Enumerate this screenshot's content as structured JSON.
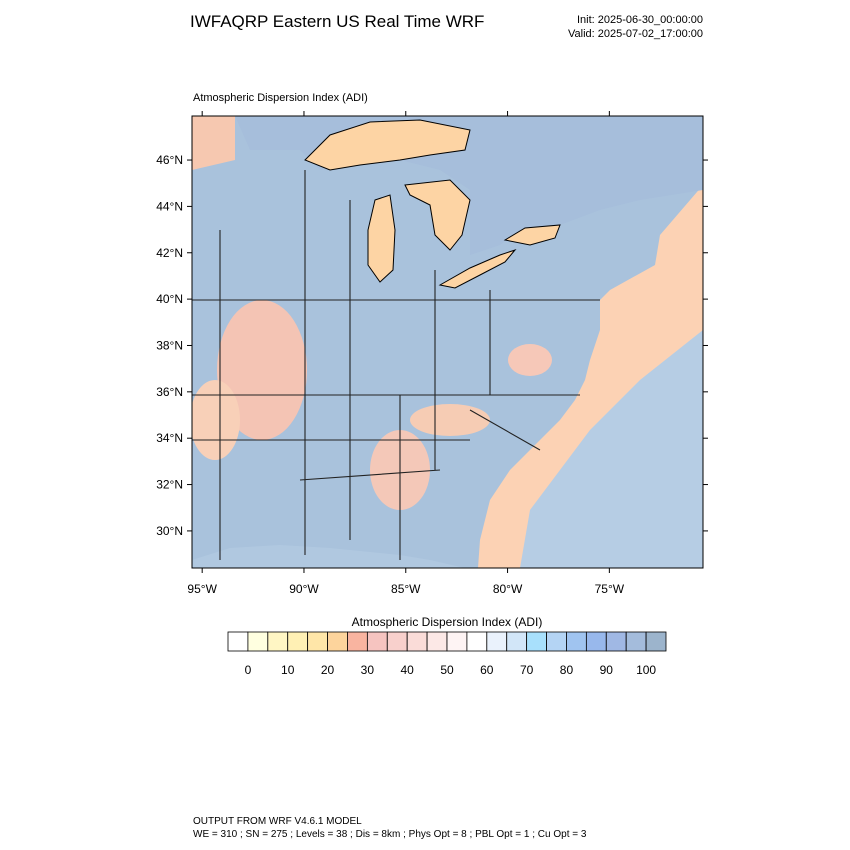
{
  "header": {
    "title": "IWFAQRP Eastern US Real Time WRF",
    "init": "Init: 2025-06-30_00:00:00",
    "valid": "Valid: 2025-07-02_17:00:00"
  },
  "map": {
    "label": "Atmospheric Dispersion Index   (ADI)",
    "xlim": [
      -95.5,
      -70.4
    ],
    "ylim": [
      28.4,
      47.9
    ],
    "xticks": [
      {
        "value": -95,
        "label": "95°W"
      },
      {
        "value": -90,
        "label": "90°W"
      },
      {
        "value": -85,
        "label": "85°W"
      },
      {
        "value": -80,
        "label": "80°W"
      },
      {
        "value": -75,
        "label": "75°W"
      }
    ],
    "yticks": [
      {
        "value": 30,
        "label": "30°N"
      },
      {
        "value": 32,
        "label": "32°N"
      },
      {
        "value": 34,
        "label": "34°N"
      },
      {
        "value": 36,
        "label": "36°N"
      },
      {
        "value": 38,
        "label": "38°N"
      },
      {
        "value": 40,
        "label": "40°N"
      },
      {
        "value": 42,
        "label": "42°N"
      },
      {
        "value": 44,
        "label": "44°N"
      },
      {
        "value": 46,
        "label": "46°N"
      }
    ]
  },
  "colorbar": {
    "title": "Atmospheric Dispersion Index  (ADI)",
    "lim": [
      -5,
      105
    ],
    "colors": [
      "#ffffff",
      "#ffffe0",
      "#fff6c4",
      "#fff0b4",
      "#ffe6a8",
      "#fdd49c",
      "#f9b4a0",
      "#f6c4c0",
      "#f8d0cc",
      "#fadcd8",
      "#fce8e6",
      "#fef4f4",
      "#ffffff",
      "#eaf2fc",
      "#d2e6f8",
      "#a8e0fc",
      "#b4d4f4",
      "#a0c4f0",
      "#98b8ec",
      "#a0b8e4",
      "#a4bcdc",
      "#9cb4cc"
    ],
    "ticks": [
      0,
      10,
      20,
      30,
      40,
      50,
      60,
      70,
      80,
      90,
      100
    ]
  },
  "footer": {
    "line1": "OUTPUT FROM WRF V4.6.1 MODEL",
    "line2": "WE = 310 ; SN = 275 ; Levels = 38 ; Dis = 8km ; Phys Opt = 8 ; PBL Opt = 1 ; Cu Opt = 3"
  }
}
